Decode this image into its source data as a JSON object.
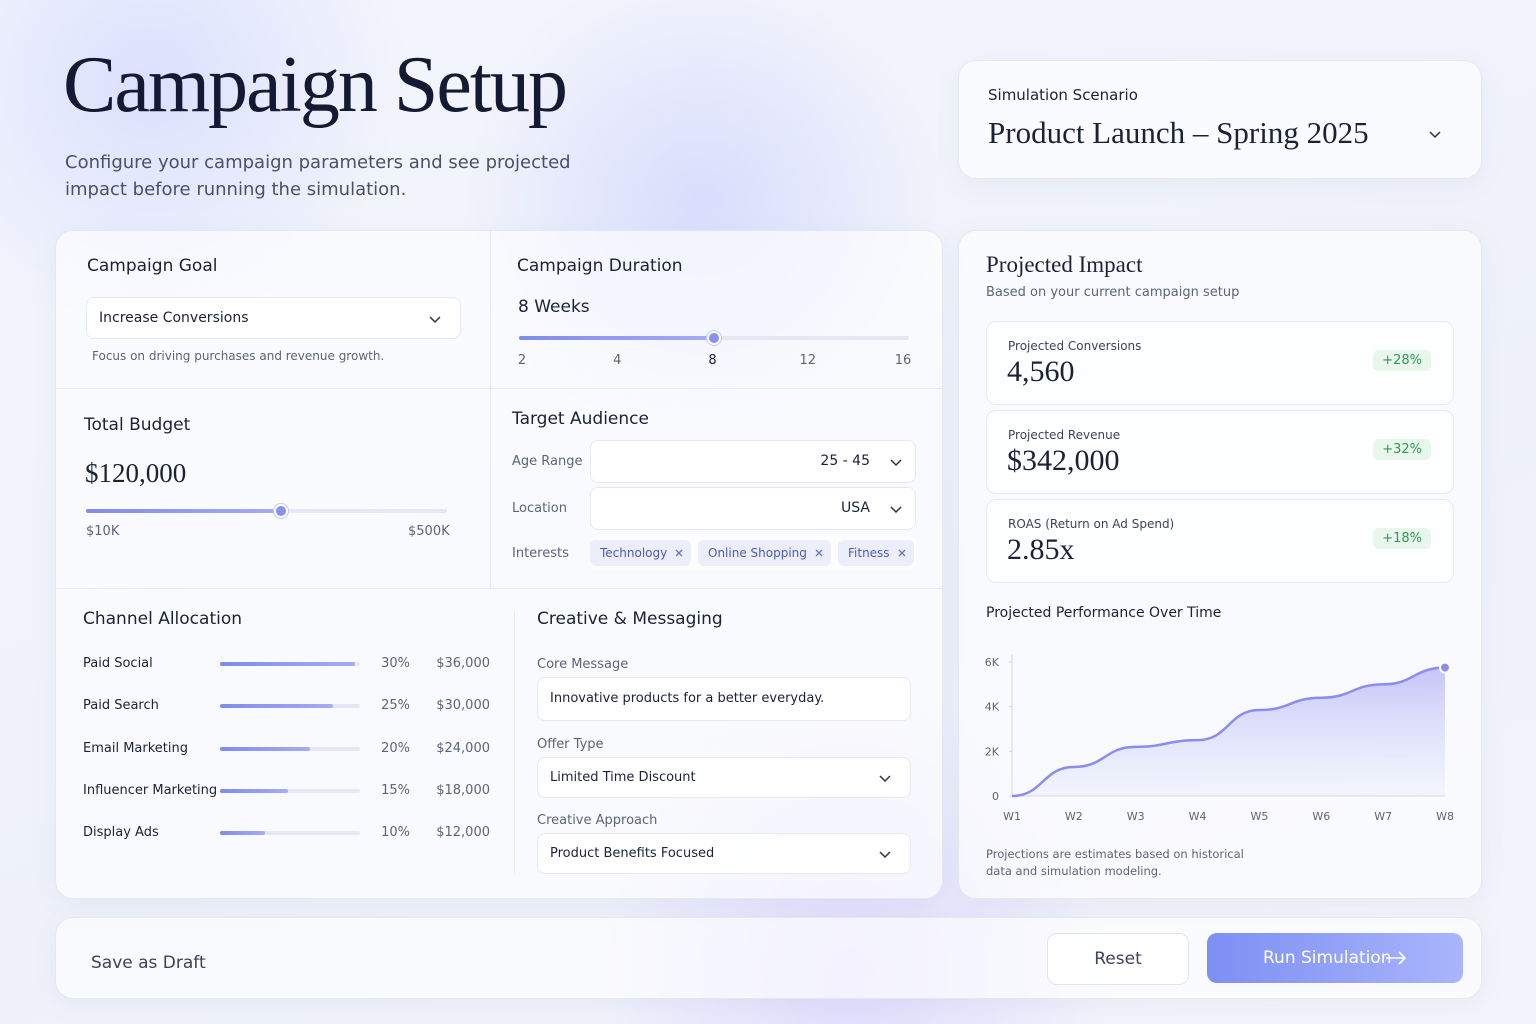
{
  "header": {
    "title": "Campaign Setup",
    "subtitle": "Configure your campaign parameters and see projected impact before running the simulation."
  },
  "scenario": {
    "label": "Simulation Scenario",
    "value": "Product Launch – Spring 2025"
  },
  "goal": {
    "title": "Campaign Goal",
    "selected": "Increase Conversions",
    "hint": "Focus on driving purchases and revenue growth."
  },
  "duration": {
    "title": "Campaign Duration",
    "value_label": "8 Weeks",
    "value": 8,
    "ticks": [
      2,
      4,
      8,
      12,
      16
    ]
  },
  "budget": {
    "title": "Total Budget",
    "value": "$120,000",
    "min": "$10K",
    "max": "$500K"
  },
  "audience": {
    "title": "Target Audience",
    "age_label": "Age Range",
    "age": "25 - 45",
    "location_label": "Location",
    "location": "USA",
    "interests_label": "Interests",
    "interests": [
      "Technology",
      "Online Shopping",
      "Fitness"
    ]
  },
  "channels": {
    "title": "Channel Allocation",
    "names": [
      "Paid Social",
      "Paid Search",
      "Email Marketing",
      "Influencer Marketing",
      "Display Ads"
    ],
    "values": [
      30,
      25,
      20,
      15,
      10
    ],
    "value_labels": [
      "30%",
      "25%",
      "20%",
      "15%",
      "10%"
    ],
    "amounts": [
      "$36,000",
      "$30,000",
      "$24,000",
      "$18,000",
      "$12,000"
    ]
  },
  "creative": {
    "title": "Creative & Messaging",
    "core_label": "Core Message",
    "core": "Innovative products for a better everyday.",
    "offer_label": "Offer Type",
    "offer": "Limited Time Discount",
    "approach_label": "Creative Approach",
    "approach": "Product Benefits Focused"
  },
  "impact": {
    "title": "Projected Impact",
    "subtitle": "Based on your current campaign setup",
    "metrics": [
      {
        "label": "Projected Conversions",
        "value": "4,560",
        "change": "+28%"
      },
      {
        "label": "Projected Revenue",
        "value": "$342,000",
        "change": "+32%"
      },
      {
        "label": "ROAS (Return on Ad Spend)",
        "value": "2.85x",
        "change": "+18%"
      }
    ],
    "note": "Projections are estimates based on historical data and simulation modeling."
  },
  "chart_data": {
    "type": "area",
    "title": "Projected Performance Over Time",
    "categories": [
      "W1",
      "W2",
      "W3",
      "W4",
      "W5",
      "W6",
      "W7",
      "W8"
    ],
    "values": [
      0,
      1300,
      2200,
      2500,
      3850,
      4400,
      5000,
      5750
    ],
    "color": "#8b8cf0",
    "grid": false,
    "ylim": [
      0,
      6000
    ],
    "yticks": [
      0,
      {
        "value": 2000,
        "label": "2K"
      },
      {
        "value": 4000,
        "label": "4K"
      },
      {
        "value": 6000,
        "label": "6K"
      }
    ]
  },
  "footer": {
    "draft": "Save as Draft",
    "reset": "Reset",
    "run": "Run Simulation"
  }
}
